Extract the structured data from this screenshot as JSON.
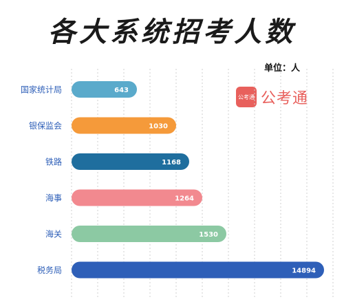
{
  "title": "各大系统招考人数",
  "unit_label": "单位：人",
  "logo": {
    "badge_text": "公考通",
    "text": "公考通"
  },
  "chart_data": {
    "type": "bar",
    "orientation": "horizontal",
    "title": "各大系统招考人数",
    "categories": [
      "国家统计局",
      "银保监会",
      "铁路",
      "海事",
      "海关",
      "税务局"
    ],
    "values": [
      643,
      1030,
      1168,
      1264,
      1530,
      14894
    ],
    "value_labels": [
      "643",
      "1030",
      "1168",
      "1264",
      "1530",
      "14894"
    ],
    "colors": [
      "#5aaacb",
      "#f59a3a",
      "#1f6e9e",
      "#f2898f",
      "#8cc9a3",
      "#2e5fb8"
    ],
    "category_label_color": "#2e5fb8",
    "grid": true
  }
}
